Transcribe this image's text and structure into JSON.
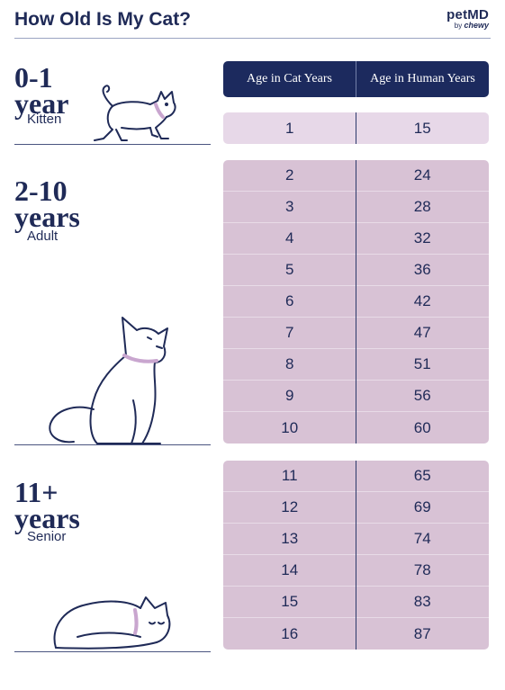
{
  "header": {
    "title": "How Old Is My Cat?",
    "brand": "petMD",
    "brand_by": "by",
    "brand_partner": "chewy"
  },
  "stages": [
    {
      "number": "0-1",
      "unit": "year",
      "label": "Kitten"
    },
    {
      "number": "2-10",
      "unit": "years",
      "label": "Adult"
    },
    {
      "number": "11+",
      "unit": "years",
      "label": "Senior"
    }
  ],
  "table": {
    "headers": [
      "Age in Cat Years",
      "Age in Human Years"
    ],
    "kitten": [
      [
        "1",
        "15"
      ]
    ],
    "adult": [
      [
        "2",
        "24"
      ],
      [
        "3",
        "28"
      ],
      [
        "4",
        "32"
      ],
      [
        "5",
        "36"
      ],
      [
        "6",
        "42"
      ],
      [
        "7",
        "47"
      ],
      [
        "8",
        "51"
      ],
      [
        "9",
        "56"
      ],
      [
        "10",
        "60"
      ]
    ],
    "senior": [
      [
        "11",
        "65"
      ],
      [
        "12",
        "69"
      ],
      [
        "13",
        "74"
      ],
      [
        "14",
        "78"
      ],
      [
        "15",
        "83"
      ],
      [
        "16",
        "87"
      ]
    ]
  },
  "colors": {
    "navy": "#1c2a5e",
    "kitten_row": "#e7d8e8",
    "adult_senior_rows": "#d8c2d5",
    "collar": "#c9a6cf"
  }
}
